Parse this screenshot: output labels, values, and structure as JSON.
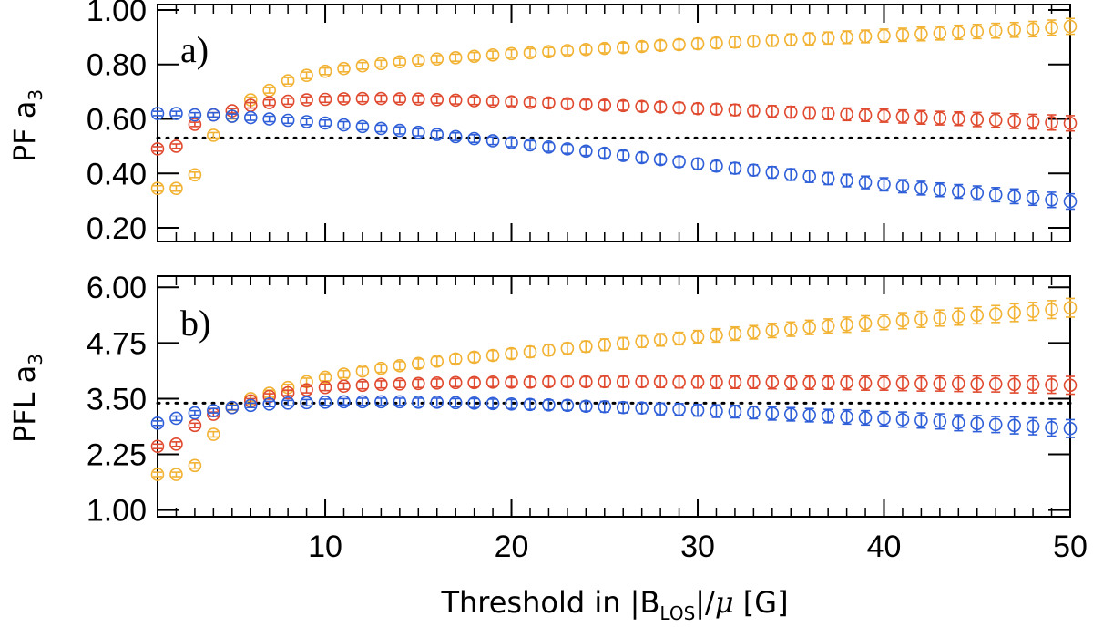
{
  "chart_data": [
    {
      "type": "scatter",
      "panel_label": "a)",
      "ylabel": "PF a",
      "ylabel_sub": "3",
      "ylim": [
        0.15,
        1.02
      ],
      "yticks": [
        "1.00",
        "0.80",
        "0.60",
        "0.40",
        "0.20"
      ],
      "yticks_values": [
        1.0,
        0.8,
        0.6,
        0.4,
        0.2
      ],
      "xlim": [
        1,
        50
      ],
      "reference_line": 0.53,
      "series": [
        {
          "name": "yellow",
          "color": "#f2b233",
          "x": [
            1,
            2,
            3,
            4,
            5,
            6,
            7,
            8,
            9,
            10,
            11,
            12,
            13,
            14,
            15,
            16,
            17,
            18,
            19,
            20,
            21,
            22,
            23,
            24,
            25,
            26,
            27,
            28,
            29,
            30,
            31,
            32,
            33,
            34,
            35,
            36,
            37,
            38,
            39,
            40,
            41,
            42,
            43,
            44,
            45,
            46,
            47,
            48,
            49,
            50
          ],
          "values": [
            0.345,
            0.345,
            0.395,
            0.54,
            0.61,
            0.67,
            0.705,
            0.74,
            0.76,
            0.775,
            0.785,
            0.795,
            0.803,
            0.81,
            0.815,
            0.82,
            0.825,
            0.83,
            0.835,
            0.84,
            0.843,
            0.847,
            0.851,
            0.855,
            0.859,
            0.862,
            0.866,
            0.87,
            0.873,
            0.876,
            0.879,
            0.882,
            0.885,
            0.888,
            0.891,
            0.894,
            0.897,
            0.9,
            0.903,
            0.906,
            0.909,
            0.912,
            0.915,
            0.918,
            0.921,
            0.924,
            0.927,
            0.93,
            0.935,
            0.94
          ],
          "errors": [
            0.01,
            0.01,
            0.01,
            0.01,
            0.01,
            0.01,
            0.01,
            0.012,
            0.012,
            0.012,
            0.012,
            0.012,
            0.012,
            0.012,
            0.013,
            0.013,
            0.013,
            0.014,
            0.014,
            0.014,
            0.015,
            0.015,
            0.015,
            0.016,
            0.016,
            0.017,
            0.017,
            0.018,
            0.018,
            0.019,
            0.019,
            0.02,
            0.02,
            0.021,
            0.021,
            0.022,
            0.022,
            0.023,
            0.023,
            0.024,
            0.024,
            0.025,
            0.025,
            0.026,
            0.026,
            0.027,
            0.027,
            0.028,
            0.028,
            0.029
          ]
        },
        {
          "name": "red",
          "color": "#e04a2f",
          "x": [
            1,
            2,
            3,
            4,
            5,
            6,
            7,
            8,
            9,
            10,
            11,
            12,
            13,
            14,
            15,
            16,
            17,
            18,
            19,
            20,
            21,
            22,
            23,
            24,
            25,
            26,
            27,
            28,
            29,
            30,
            31,
            32,
            33,
            34,
            35,
            36,
            37,
            38,
            39,
            40,
            41,
            42,
            43,
            44,
            45,
            46,
            47,
            48,
            49,
            50
          ],
          "values": [
            0.49,
            0.5,
            0.58,
            0.615,
            0.63,
            0.65,
            0.66,
            0.665,
            0.67,
            0.672,
            0.674,
            0.675,
            0.675,
            0.674,
            0.673,
            0.671,
            0.669,
            0.667,
            0.665,
            0.663,
            0.661,
            0.659,
            0.656,
            0.654,
            0.651,
            0.649,
            0.646,
            0.644,
            0.641,
            0.638,
            0.636,
            0.633,
            0.63,
            0.628,
            0.625,
            0.622,
            0.62,
            0.617,
            0.614,
            0.612,
            0.609,
            0.606,
            0.603,
            0.601,
            0.598,
            0.595,
            0.592,
            0.59,
            0.587,
            0.584
          ],
          "errors": [
            0.008,
            0.008,
            0.008,
            0.008,
            0.008,
            0.01,
            0.01,
            0.011,
            0.011,
            0.011,
            0.012,
            0.012,
            0.012,
            0.013,
            0.013,
            0.013,
            0.014,
            0.014,
            0.014,
            0.015,
            0.015,
            0.016,
            0.016,
            0.016,
            0.017,
            0.017,
            0.018,
            0.018,
            0.019,
            0.019,
            0.019,
            0.02,
            0.02,
            0.021,
            0.021,
            0.022,
            0.022,
            0.023,
            0.023,
            0.024,
            0.024,
            0.025,
            0.025,
            0.025,
            0.026,
            0.026,
            0.027,
            0.027,
            0.028,
            0.028
          ]
        },
        {
          "name": "blue",
          "color": "#2f5fd8",
          "x": [
            1,
            2,
            3,
            4,
            5,
            6,
            7,
            8,
            9,
            10,
            11,
            12,
            13,
            14,
            15,
            16,
            17,
            18,
            19,
            20,
            21,
            22,
            23,
            24,
            25,
            26,
            27,
            28,
            29,
            30,
            31,
            32,
            33,
            34,
            35,
            36,
            37,
            38,
            39,
            40,
            41,
            42,
            43,
            44,
            45,
            46,
            47,
            48,
            49,
            50
          ],
          "values": [
            0.62,
            0.62,
            0.615,
            0.615,
            0.61,
            0.605,
            0.6,
            0.595,
            0.59,
            0.585,
            0.578,
            0.572,
            0.565,
            0.558,
            0.551,
            0.543,
            0.535,
            0.528,
            0.52,
            0.513,
            0.505,
            0.497,
            0.49,
            0.482,
            0.474,
            0.466,
            0.458,
            0.451,
            0.443,
            0.435,
            0.427,
            0.419,
            0.412,
            0.404,
            0.396,
            0.389,
            0.381,
            0.374,
            0.367,
            0.36,
            0.353,
            0.346,
            0.34,
            0.334,
            0.328,
            0.322,
            0.316,
            0.31,
            0.303,
            0.297
          ],
          "errors": [
            0.008,
            0.008,
            0.008,
            0.008,
            0.008,
            0.01,
            0.01,
            0.011,
            0.011,
            0.011,
            0.012,
            0.012,
            0.012,
            0.013,
            0.013,
            0.013,
            0.014,
            0.014,
            0.014,
            0.015,
            0.015,
            0.016,
            0.016,
            0.016,
            0.017,
            0.017,
            0.018,
            0.018,
            0.019,
            0.019,
            0.019,
            0.02,
            0.02,
            0.021,
            0.021,
            0.022,
            0.022,
            0.023,
            0.023,
            0.024,
            0.024,
            0.025,
            0.025,
            0.025,
            0.026,
            0.026,
            0.027,
            0.027,
            0.028,
            0.028
          ]
        }
      ]
    },
    {
      "type": "scatter",
      "panel_label": "b)",
      "ylabel": "PFL a",
      "ylabel_sub": "3",
      "ylim": [
        0.85,
        6.25
      ],
      "yticks": [
        "6.00",
        "4.75",
        "3.50",
        "2.25",
        "1.00"
      ],
      "yticks_values": [
        6.0,
        4.75,
        3.5,
        2.25,
        1.0
      ],
      "xlim": [
        1,
        50
      ],
      "xticks": [
        "10",
        "20",
        "30",
        "40",
        "50"
      ],
      "xticks_values": [
        10,
        20,
        30,
        40,
        50
      ],
      "xlabel_parts": [
        "Threshold in |B",
        "LOS",
        "|/",
        "μ",
        " [G]"
      ],
      "reference_line": 3.4,
      "series": [
        {
          "name": "yellow",
          "color": "#f2b233",
          "x": [
            1,
            2,
            3,
            4,
            5,
            6,
            7,
            8,
            9,
            10,
            11,
            12,
            13,
            14,
            15,
            16,
            17,
            18,
            19,
            20,
            21,
            22,
            23,
            24,
            25,
            26,
            27,
            28,
            29,
            30,
            31,
            32,
            33,
            34,
            35,
            36,
            37,
            38,
            39,
            40,
            41,
            42,
            43,
            44,
            45,
            46,
            47,
            48,
            49,
            50
          ],
          "values": [
            1.8,
            1.8,
            2.0,
            2.7,
            3.3,
            3.5,
            3.62,
            3.75,
            3.88,
            3.98,
            4.05,
            4.12,
            4.18,
            4.24,
            4.29,
            4.34,
            4.39,
            4.43,
            4.47,
            4.51,
            4.55,
            4.59,
            4.63,
            4.67,
            4.71,
            4.74,
            4.78,
            4.82,
            4.85,
            4.89,
            4.92,
            4.96,
            4.99,
            5.03,
            5.06,
            5.1,
            5.13,
            5.16,
            5.19,
            5.22,
            5.25,
            5.28,
            5.31,
            5.34,
            5.37,
            5.4,
            5.43,
            5.46,
            5.5,
            5.54
          ],
          "errors": [
            0.05,
            0.05,
            0.06,
            0.06,
            0.06,
            0.06,
            0.07,
            0.07,
            0.08,
            0.08,
            0.08,
            0.09,
            0.09,
            0.09,
            0.1,
            0.1,
            0.1,
            0.11,
            0.11,
            0.11,
            0.12,
            0.12,
            0.12,
            0.12,
            0.13,
            0.13,
            0.13,
            0.14,
            0.14,
            0.14,
            0.15,
            0.15,
            0.15,
            0.16,
            0.16,
            0.16,
            0.16,
            0.17,
            0.17,
            0.17,
            0.18,
            0.18,
            0.18,
            0.19,
            0.19,
            0.19,
            0.2,
            0.2,
            0.2,
            0.21
          ]
        },
        {
          "name": "red",
          "color": "#e04a2f",
          "x": [
            1,
            2,
            3,
            4,
            5,
            6,
            7,
            8,
            9,
            10,
            11,
            12,
            13,
            14,
            15,
            16,
            17,
            18,
            19,
            20,
            21,
            22,
            23,
            24,
            25,
            26,
            27,
            28,
            29,
            30,
            31,
            32,
            33,
            34,
            35,
            36,
            37,
            38,
            39,
            40,
            41,
            42,
            43,
            44,
            45,
            46,
            47,
            48,
            49,
            50
          ],
          "values": [
            2.43,
            2.48,
            2.9,
            3.15,
            3.3,
            3.45,
            3.55,
            3.63,
            3.7,
            3.75,
            3.78,
            3.8,
            3.82,
            3.83,
            3.84,
            3.85,
            3.86,
            3.86,
            3.87,
            3.87,
            3.87,
            3.88,
            3.88,
            3.88,
            3.88,
            3.88,
            3.88,
            3.88,
            3.87,
            3.87,
            3.87,
            3.87,
            3.87,
            3.87,
            3.86,
            3.86,
            3.86,
            3.86,
            3.85,
            3.85,
            3.85,
            3.84,
            3.84,
            3.84,
            3.83,
            3.83,
            3.82,
            3.82,
            3.81,
            3.8
          ],
          "errors": [
            0.05,
            0.05,
            0.05,
            0.05,
            0.05,
            0.05,
            0.06,
            0.06,
            0.07,
            0.07,
            0.07,
            0.08,
            0.08,
            0.08,
            0.09,
            0.09,
            0.09,
            0.1,
            0.1,
            0.1,
            0.11,
            0.11,
            0.11,
            0.11,
            0.12,
            0.12,
            0.12,
            0.13,
            0.13,
            0.13,
            0.14,
            0.14,
            0.14,
            0.15,
            0.15,
            0.15,
            0.15,
            0.16,
            0.16,
            0.16,
            0.17,
            0.17,
            0.17,
            0.18,
            0.18,
            0.18,
            0.19,
            0.19,
            0.19,
            0.2
          ]
        },
        {
          "name": "blue",
          "color": "#2f5fd8",
          "x": [
            1,
            2,
            3,
            4,
            5,
            6,
            7,
            8,
            9,
            10,
            11,
            12,
            13,
            14,
            15,
            16,
            17,
            18,
            19,
            20,
            21,
            22,
            23,
            24,
            25,
            26,
            27,
            28,
            29,
            30,
            31,
            32,
            33,
            34,
            35,
            36,
            37,
            38,
            39,
            40,
            41,
            42,
            43,
            44,
            45,
            46,
            47,
            48,
            49,
            50
          ],
          "values": [
            2.95,
            3.06,
            3.18,
            3.23,
            3.3,
            3.35,
            3.38,
            3.4,
            3.41,
            3.42,
            3.43,
            3.43,
            3.43,
            3.43,
            3.42,
            3.42,
            3.41,
            3.4,
            3.39,
            3.38,
            3.37,
            3.36,
            3.35,
            3.33,
            3.32,
            3.3,
            3.29,
            3.27,
            3.26,
            3.24,
            3.22,
            3.21,
            3.19,
            3.17,
            3.15,
            3.13,
            3.11,
            3.09,
            3.07,
            3.05,
            3.03,
            3.01,
            2.99,
            2.96,
            2.94,
            2.92,
            2.9,
            2.88,
            2.85,
            2.83
          ],
          "errors": [
            0.05,
            0.05,
            0.05,
            0.05,
            0.05,
            0.05,
            0.06,
            0.06,
            0.07,
            0.07,
            0.07,
            0.08,
            0.08,
            0.08,
            0.09,
            0.09,
            0.09,
            0.1,
            0.1,
            0.1,
            0.11,
            0.11,
            0.11,
            0.11,
            0.12,
            0.12,
            0.12,
            0.13,
            0.13,
            0.13,
            0.14,
            0.14,
            0.14,
            0.15,
            0.15,
            0.15,
            0.15,
            0.16,
            0.16,
            0.16,
            0.17,
            0.17,
            0.17,
            0.18,
            0.18,
            0.18,
            0.19,
            0.19,
            0.19,
            0.2
          ]
        }
      ]
    }
  ]
}
